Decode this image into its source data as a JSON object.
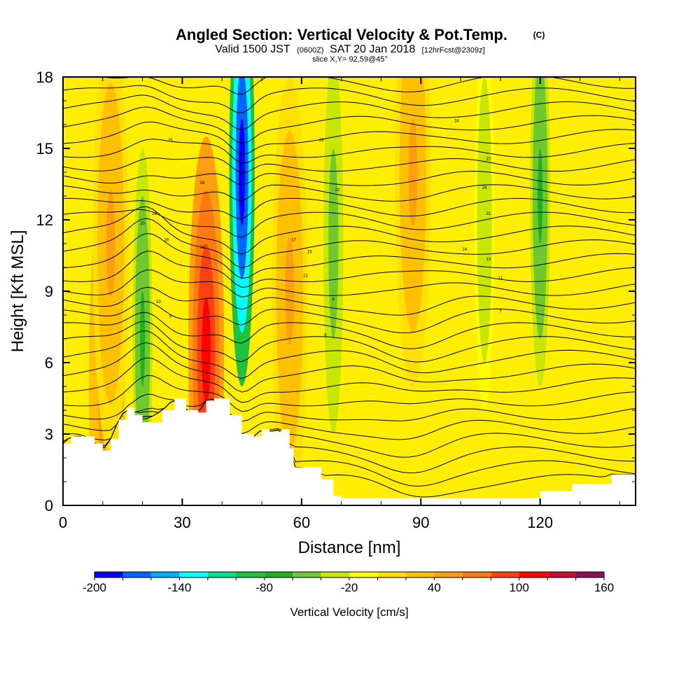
{
  "header": {
    "title": "Angled Section: Vertical Velocity & Pot.Temp.",
    "title_suffix": "(C)",
    "valid_prefix": "Valid 1500 JST",
    "valid_utc": "(0600Z)",
    "valid_date": "SAT 20 Jan 2018",
    "forecast": "[12hrFcst@2309z]",
    "slice_info": "slice X,Y= 92,59@45°"
  },
  "chart_data": {
    "type": "heatmap",
    "xlabel": "Distance [nm]",
    "ylabel": "Height [Kft MSL]",
    "xlim": [
      0,
      144
    ],
    "ylim": [
      0,
      18
    ],
    "x_ticks": [
      0,
      30,
      60,
      90,
      120
    ],
    "x_tick_labels": [
      "0",
      "30",
      "60",
      "90",
      "120"
    ],
    "y_ticks": [
      0,
      3,
      6,
      9,
      12,
      15,
      18
    ],
    "y_tick_labels": [
      "0",
      "3",
      "6",
      "9",
      "12",
      "15",
      "18"
    ],
    "field": "Vertical Velocity [cm/s]",
    "background_value_cm_s": 0,
    "updraft_features": [
      {
        "x_nm": 11,
        "height_kft": 5.2,
        "peak_cm_s": 60
      },
      {
        "x_nm": 36,
        "height_kft": 6.5,
        "peak_cm_s": 100
      },
      {
        "x_nm": 57,
        "height_kft": 9.0,
        "peak_cm_s": 40
      },
      {
        "x_nm": 88,
        "height_kft": 14.0,
        "peak_cm_s": 40
      },
      {
        "x_nm": 12,
        "height_kft": 11.0,
        "peak_cm_s": 40
      }
    ],
    "downdraft_features": [
      {
        "x_nm": 45,
        "height_kft": 14.0,
        "peak_cm_s": -200
      },
      {
        "x_nm": 20,
        "height_kft": 7.0,
        "peak_cm_s": -70
      },
      {
        "x_nm": 68,
        "height_kft": 11.0,
        "peak_cm_s": -60
      },
      {
        "x_nm": 120,
        "height_kft": 13.0,
        "peak_cm_s": -70
      },
      {
        "x_nm": 106,
        "height_kft": 12.0,
        "peak_cm_s": -40
      }
    ],
    "terrain_profile": {
      "x_nm": [
        0,
        2,
        5,
        8,
        10,
        12,
        14,
        16,
        18,
        20,
        25,
        28,
        31,
        34,
        36,
        38,
        42,
        45,
        48,
        50,
        52,
        55,
        57,
        58,
        61,
        65,
        68,
        70,
        75,
        80,
        90,
        100,
        113,
        120,
        128,
        135,
        138,
        144
      ],
      "height_kft": [
        2.6,
        2.9,
        2.9,
        2.6,
        2.3,
        2.8,
        3.6,
        4.1,
        3.8,
        3.5,
        4.0,
        4.5,
        4.0,
        3.9,
        4.4,
        4.5,
        3.8,
        3.0,
        2.9,
        3.2,
        3.1,
        3.2,
        2.4,
        1.6,
        1.6,
        1.1,
        0.4,
        0.3,
        0.3,
        0.3,
        0.3,
        0.3,
        0.3,
        0.6,
        0.9,
        0.9,
        1.3,
        1.3
      ]
    },
    "colorbar": {
      "title": "Vertical Velocity [cm/s]",
      "tick_labels": [
        "-200",
        "-140",
        "-80",
        "-20",
        "40",
        "100",
        "160"
      ],
      "tick_values": [
        -200,
        -140,
        -80,
        -20,
        40,
        100,
        160
      ],
      "bins": [
        -200,
        -180,
        -160,
        -140,
        -120,
        -100,
        -80,
        -60,
        -40,
        -20,
        0,
        20,
        40,
        60,
        80,
        100,
        120,
        140,
        160
      ],
      "colors": [
        "#0000ff",
        "#0064ff",
        "#00aaff",
        "#00ffff",
        "#00e090",
        "#20c040",
        "#20b020",
        "#70c830",
        "#c8e600",
        "#ffff00",
        "#ffe000",
        "#ffc000",
        "#ff9e10",
        "#ff7a10",
        "#ff4010",
        "#ff0000",
        "#c8102e",
        "#8a0f5a",
        "#5a0f8a"
      ]
    },
    "isentropes": {
      "count": 32,
      "labels": [
        "25",
        "26",
        "24",
        "27",
        "29",
        "28",
        "22",
        "24",
        "21",
        "20",
        "19",
        "18",
        "17",
        "15",
        "14",
        "13",
        "12",
        "11",
        "10",
        "9",
        "8",
        "7",
        "6"
      ]
    },
    "grid": false
  }
}
